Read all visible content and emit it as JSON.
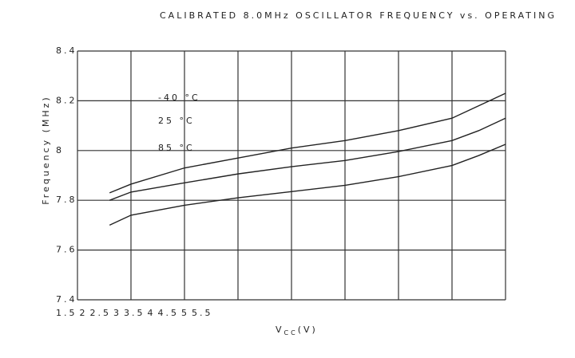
{
  "chart_data": {
    "type": "line",
    "title": "CALIBRATED 8.0MHz OSCILLATOR FREQUENCY vs. OPERATING",
    "xlabel": [
      "V",
      "CC",
      "(V)"
    ],
    "ylabel": "Frequency (MHz)",
    "x": [
      1.8,
      2,
      2.5,
      3,
      3.5,
      4,
      4.5,
      5,
      5.25,
      5.5
    ],
    "series": [
      {
        "name": "-40 °C",
        "color": "#222222",
        "values": [
          7.83,
          7.865,
          7.93,
          7.97,
          8.01,
          8.04,
          8.08,
          8.13,
          8.18,
          8.23
        ]
      },
      {
        "name": "25 °C",
        "color": "#222222",
        "values": [
          7.8,
          7.833,
          7.87,
          7.906,
          7.935,
          7.96,
          7.996,
          8.04,
          8.08,
          8.13
        ]
      },
      {
        "name": "85 °C",
        "color": "#222222",
        "values": [
          7.7,
          7.74,
          7.78,
          7.81,
          7.835,
          7.86,
          7.895,
          7.94,
          7.98,
          8.025
        ]
      }
    ],
    "xlim": [
      1.5,
      5.5
    ],
    "xticks": [
      1.5,
      2,
      2.5,
      3,
      3.5,
      4,
      4.5,
      5,
      5.5
    ],
    "ylim": [
      7.4,
      8.4
    ],
    "yticks": [
      7.4,
      7.6,
      7.8,
      8,
      8.2,
      8.4
    ],
    "grid": true
  }
}
